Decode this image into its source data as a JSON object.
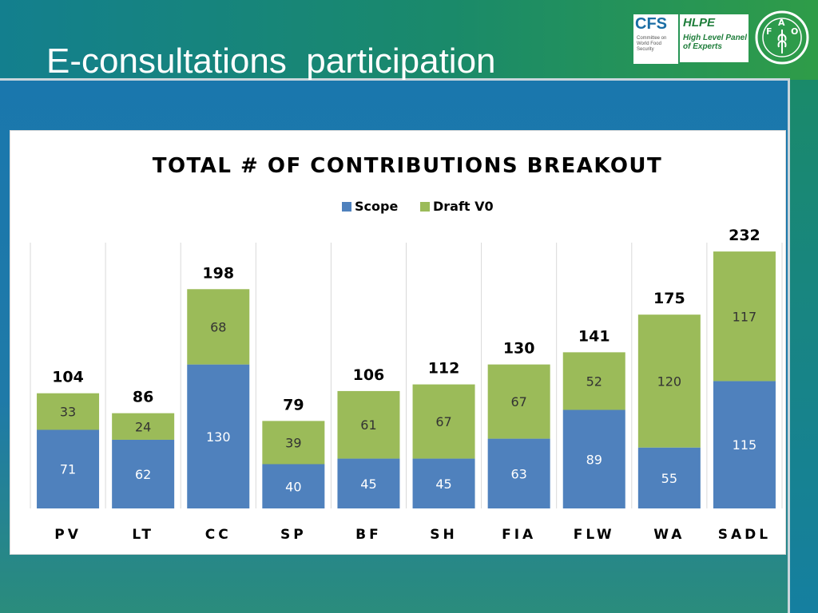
{
  "slide": {
    "title": "E-consultations  participation"
  },
  "logos": {
    "cfs": {
      "name": "CFS",
      "subtitle": "Committee on World Food Security"
    },
    "hlpe": {
      "name": "HLPE",
      "subtitle": "High Level Panel of Experts"
    },
    "fao": {
      "letters": [
        "F",
        "A",
        "O"
      ],
      "motto": "FIAT PANIS"
    }
  },
  "colors": {
    "scope": "#4f81bd",
    "draft": "#9bbb59",
    "gridline": "#d9d9d9",
    "label_dark": "#000000",
    "label_light": "#ffffff"
  },
  "chart_data": {
    "type": "bar",
    "stacked": true,
    "title": "TOTAL # OF CONTRIBUTIONS BREAKOUT",
    "legend_position": "top",
    "categories": [
      "PV",
      "LT",
      "CC",
      "SP",
      "BF",
      "SH",
      "FIA",
      "FLW",
      "WA",
      "SADL"
    ],
    "series": [
      {
        "name": "Scope",
        "values": [
          71,
          62,
          130,
          40,
          45,
          45,
          63,
          89,
          55,
          115
        ]
      },
      {
        "name": "Draft V0",
        "values": [
          33,
          24,
          68,
          39,
          61,
          67,
          67,
          52,
          120,
          117
        ]
      }
    ],
    "totals": [
      104,
      86,
      198,
      79,
      106,
      112,
      130,
      141,
      175,
      232
    ],
    "xlabel": "",
    "ylabel": "",
    "ylim": [
      0,
      240
    ],
    "grid": "vertical category separators"
  }
}
